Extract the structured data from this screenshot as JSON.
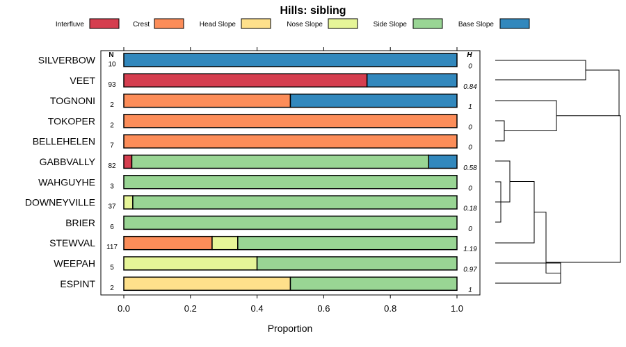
{
  "chart_data": {
    "type": "bar",
    "stacked": true,
    "orientation": "horizontal",
    "title": "Hills: sibling",
    "xlabel": "Proportion",
    "xlim": [
      0,
      1
    ],
    "xticks": [
      "0.0",
      "0.2",
      "0.4",
      "0.6",
      "0.8",
      "1.0"
    ],
    "n_header": "N",
    "h_header": "H",
    "legend_position": "top",
    "classes": [
      {
        "name": "Interfluve",
        "color": "#d53e4f"
      },
      {
        "name": "Crest",
        "color": "#fc8d59"
      },
      {
        "name": "Head Slope",
        "color": "#fee08b"
      },
      {
        "name": "Nose Slope",
        "color": "#e6f598"
      },
      {
        "name": "Side Slope",
        "color": "#99d594"
      },
      {
        "name": "Base Slope",
        "color": "#3288bd"
      }
    ],
    "rows": [
      {
        "name": "SILVERBOW",
        "n": "10",
        "h": "0",
        "values": [
          0,
          0,
          0,
          0,
          0,
          1.0
        ]
      },
      {
        "name": "VEET",
        "n": "93",
        "h": "0.84",
        "values": [
          0.73,
          0,
          0,
          0,
          0,
          0.27
        ]
      },
      {
        "name": "TOGNONI",
        "n": "2",
        "h": "1",
        "values": [
          0,
          0.5,
          0,
          0,
          0,
          0.5
        ]
      },
      {
        "name": "TOKOPER",
        "n": "2",
        "h": "0",
        "values": [
          0,
          1.0,
          0,
          0,
          0,
          0
        ]
      },
      {
        "name": "BELLEHELEN",
        "n": "7",
        "h": "0",
        "values": [
          0,
          1.0,
          0,
          0,
          0,
          0
        ]
      },
      {
        "name": "GABBVALLY",
        "n": "82",
        "h": "0.58",
        "values": [
          0.024,
          0,
          0,
          0,
          0.891,
          0.085
        ]
      },
      {
        "name": "WAHGUYHE",
        "n": "3",
        "h": "0",
        "values": [
          0,
          0,
          0,
          0,
          1.0,
          0
        ]
      },
      {
        "name": "DOWNEYVILLE",
        "n": "37",
        "h": "0.18",
        "values": [
          0,
          0,
          0,
          0.027,
          0.973,
          0
        ]
      },
      {
        "name": "BRIER",
        "n": "6",
        "h": "0",
        "values": [
          0,
          0,
          0,
          0,
          1.0,
          0
        ]
      },
      {
        "name": "STEWVAL",
        "n": "117",
        "h": "1.19",
        "values": [
          0,
          0.265,
          0,
          0.077,
          0.658,
          0
        ]
      },
      {
        "name": "WEEPAH",
        "n": "5",
        "h": "0.97",
        "values": [
          0,
          0,
          0,
          0.4,
          0.6,
          0
        ]
      },
      {
        "name": "ESPINT",
        "n": "2",
        "h": "1",
        "values": [
          0,
          0,
          0.5,
          0,
          0.5,
          0
        ]
      }
    ],
    "dendrogram_merges": [
      {
        "rows": [
          "WAHGUYHE",
          "BRIER"
        ],
        "height": 0.02
      },
      {
        "rows": [
          "DOWNEYVILLE"
        ],
        "height": 0.07
      },
      {
        "rows": [
          "TOKOPER",
          "BELLEHELEN"
        ],
        "height": 0.05
      },
      {
        "rows": [
          "GABBVALLY"
        ],
        "height": 0.12
      },
      {
        "rows": [
          "STEWVAL"
        ],
        "height": 0.31
      },
      {
        "rows": [
          "WEEPAH",
          "ESPINT"
        ],
        "height": 0.51
      },
      {
        "rows": [
          "SILVERBOW",
          "VEET"
        ],
        "height": 0.73
      },
      {
        "rows": [
          "TOGNONI"
        ],
        "height": 0.49
      },
      {
        "rows": [
          "ALL"
        ],
        "height": 1.0
      }
    ]
  }
}
